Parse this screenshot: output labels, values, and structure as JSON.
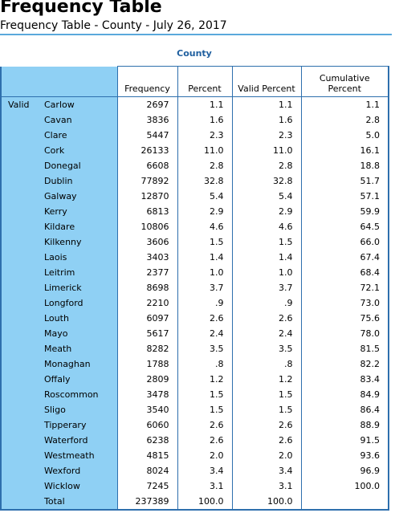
{
  "title": "Frequency Table",
  "subtitle": "Frequency Table - County - July 26, 2017",
  "caption": "County",
  "headers": {
    "frequency": "Frequency",
    "percent": "Percent",
    "valid_percent": "Valid Percent",
    "cumulative_percent": "Cumulative Percent"
  },
  "group_label": "Valid",
  "rows": [
    {
      "label": "Carlow",
      "frequency": "2697",
      "percent": "1.1",
      "valid_percent": "1.1",
      "cumulative_percent": "1.1"
    },
    {
      "label": "Cavan",
      "frequency": "3836",
      "percent": "1.6",
      "valid_percent": "1.6",
      "cumulative_percent": "2.8"
    },
    {
      "label": "Clare",
      "frequency": "5447",
      "percent": "2.3",
      "valid_percent": "2.3",
      "cumulative_percent": "5.0"
    },
    {
      "label": "Cork",
      "frequency": "26133",
      "percent": "11.0",
      "valid_percent": "11.0",
      "cumulative_percent": "16.1"
    },
    {
      "label": "Donegal",
      "frequency": "6608",
      "percent": "2.8",
      "valid_percent": "2.8",
      "cumulative_percent": "18.8"
    },
    {
      "label": "Dublin",
      "frequency": "77892",
      "percent": "32.8",
      "valid_percent": "32.8",
      "cumulative_percent": "51.7"
    },
    {
      "label": "Galway",
      "frequency": "12870",
      "percent": "5.4",
      "valid_percent": "5.4",
      "cumulative_percent": "57.1"
    },
    {
      "label": "Kerry",
      "frequency": "6813",
      "percent": "2.9",
      "valid_percent": "2.9",
      "cumulative_percent": "59.9"
    },
    {
      "label": "Kildare",
      "frequency": "10806",
      "percent": "4.6",
      "valid_percent": "4.6",
      "cumulative_percent": "64.5"
    },
    {
      "label": "Kilkenny",
      "frequency": "3606",
      "percent": "1.5",
      "valid_percent": "1.5",
      "cumulative_percent": "66.0"
    },
    {
      "label": "Laois",
      "frequency": "3403",
      "percent": "1.4",
      "valid_percent": "1.4",
      "cumulative_percent": "67.4"
    },
    {
      "label": "Leitrim",
      "frequency": "2377",
      "percent": "1.0",
      "valid_percent": "1.0",
      "cumulative_percent": "68.4"
    },
    {
      "label": "Limerick",
      "frequency": "8698",
      "percent": "3.7",
      "valid_percent": "3.7",
      "cumulative_percent": "72.1"
    },
    {
      "label": "Longford",
      "frequency": "2210",
      "percent": ".9",
      "valid_percent": ".9",
      "cumulative_percent": "73.0"
    },
    {
      "label": "Louth",
      "frequency": "6097",
      "percent": "2.6",
      "valid_percent": "2.6",
      "cumulative_percent": "75.6"
    },
    {
      "label": "Mayo",
      "frequency": "5617",
      "percent": "2.4",
      "valid_percent": "2.4",
      "cumulative_percent": "78.0"
    },
    {
      "label": "Meath",
      "frequency": "8282",
      "percent": "3.5",
      "valid_percent": "3.5",
      "cumulative_percent": "81.5"
    },
    {
      "label": "Monaghan",
      "frequency": "1788",
      "percent": ".8",
      "valid_percent": ".8",
      "cumulative_percent": "82.2"
    },
    {
      "label": "Offaly",
      "frequency": "2809",
      "percent": "1.2",
      "valid_percent": "1.2",
      "cumulative_percent": "83.4"
    },
    {
      "label": "Roscommon",
      "frequency": "3478",
      "percent": "1.5",
      "valid_percent": "1.5",
      "cumulative_percent": "84.9"
    },
    {
      "label": "Sligo",
      "frequency": "3540",
      "percent": "1.5",
      "valid_percent": "1.5",
      "cumulative_percent": "86.4"
    },
    {
      "label": "Tipperary",
      "frequency": "6060",
      "percent": "2.6",
      "valid_percent": "2.6",
      "cumulative_percent": "88.9"
    },
    {
      "label": "Waterford",
      "frequency": "6238",
      "percent": "2.6",
      "valid_percent": "2.6",
      "cumulative_percent": "91.5"
    },
    {
      "label": "Westmeath",
      "frequency": "4815",
      "percent": "2.0",
      "valid_percent": "2.0",
      "cumulative_percent": "93.6"
    },
    {
      "label": "Wexford",
      "frequency": "8024",
      "percent": "3.4",
      "valid_percent": "3.4",
      "cumulative_percent": "96.9"
    },
    {
      "label": "Wicklow",
      "frequency": "7245",
      "percent": "3.1",
      "valid_percent": "3.1",
      "cumulative_percent": "100.0"
    },
    {
      "label": "Total",
      "frequency": "237389",
      "percent": "100.0",
      "valid_percent": "100.0",
      "cumulative_percent": ""
    }
  ],
  "colors": {
    "header_stub": "#8fd0f4",
    "border": "#2e6fad",
    "caption": "#1f5f9f",
    "rule": "#5aa9dc"
  }
}
